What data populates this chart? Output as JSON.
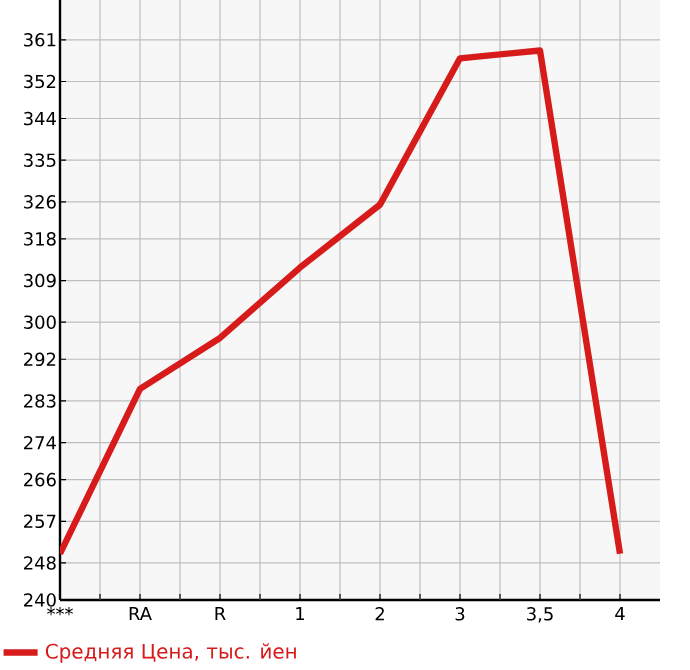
{
  "chart_data": {
    "type": "line",
    "categories": [
      "***",
      "RA",
      "R",
      "1",
      "2",
      "3",
      "3,5",
      "4"
    ],
    "series": [
      {
        "name": "Средняя Цена, тыс. йен",
        "color": "#d71a1a",
        "values": [
          250,
          285.6,
          296.6,
          311.8,
          325.4,
          357,
          358.7,
          250
        ]
      }
    ],
    "ylim": [
      240,
      369.6
    ],
    "yticks": [
      240,
      248,
      257,
      266,
      274,
      283,
      292,
      300,
      309,
      318,
      326,
      335,
      344,
      352,
      361
    ],
    "grid": true,
    "legend": "bottom",
    "marker": "none",
    "line_style": "solid"
  }
}
